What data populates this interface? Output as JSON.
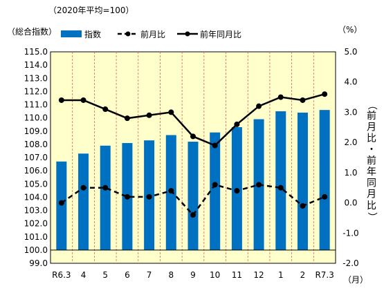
{
  "chart_data": {
    "type": "bar+line",
    "note": "（2020年平均=100）",
    "y_left_title": "（総合指数）",
    "y_right_title": "（%）",
    "y_right_vertical_title": "（前月比・前年同月比）",
    "x_unit": "（月）",
    "categories": [
      "R6.3",
      "4",
      "5",
      "6",
      "7",
      "8",
      "9",
      "10",
      "11",
      "12",
      "1",
      "2",
      "R7.3"
    ],
    "left_axis": {
      "min": 99.0,
      "max": 115.0,
      "step": 1.0,
      "bar_base": 100.0
    },
    "right_axis": {
      "min": -2.0,
      "max": 5.0,
      "step": 1.0
    },
    "series": [
      {
        "name": "指数",
        "kind": "bar",
        "axis": "left",
        "values": [
          106.7,
          107.3,
          107.9,
          108.1,
          108.3,
          108.7,
          108.2,
          108.9,
          109.3,
          109.9,
          110.5,
          110.4,
          110.6
        ]
      },
      {
        "name": "前月比",
        "kind": "dashed-line",
        "axis": "right",
        "values": [
          0.0,
          0.5,
          0.5,
          0.2,
          0.2,
          0.4,
          -0.4,
          0.6,
          0.4,
          0.6,
          0.5,
          -0.1,
          0.2
        ]
      },
      {
        "name": "前年同月比",
        "kind": "line",
        "axis": "right",
        "values": [
          3.4,
          3.4,
          3.1,
          2.8,
          2.9,
          3.0,
          2.2,
          1.9,
          2.6,
          3.2,
          3.5,
          3.4,
          3.6
        ]
      }
    ],
    "colors": {
      "bar": "#0070c0",
      "plot_bg": "#ffffcc",
      "grid": "#e06060",
      "line": "#000000"
    },
    "legend_position": "top"
  }
}
